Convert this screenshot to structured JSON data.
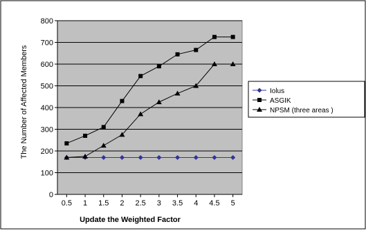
{
  "chart_data": {
    "type": "line",
    "title": "",
    "xlabel": "Update the Weighted Factor",
    "ylabel": "The Number of Affected Members",
    "x": [
      0.5,
      1,
      1.5,
      2,
      2.5,
      3,
      3.5,
      4,
      4.5,
      5
    ],
    "x_tick_labels": [
      "0.5",
      "1",
      "1.5",
      "2",
      "2.5",
      "3",
      "3.5",
      "4",
      "4.5",
      "5"
    ],
    "ylim": [
      0,
      800
    ],
    "y_ticks": [
      0,
      100,
      200,
      300,
      400,
      500,
      600,
      700,
      800
    ],
    "y_tick_labels": [
      "0",
      "100",
      "200",
      "300",
      "400",
      "500",
      "600",
      "700",
      "800"
    ],
    "grid": "horizontal",
    "plot_background": "#c0c0c0",
    "legend_position": "right",
    "series": [
      {
        "name": "Iolus",
        "marker": "diamond",
        "color": "#333399",
        "values": [
          170,
          170,
          170,
          170,
          170,
          170,
          170,
          170,
          170,
          170
        ]
      },
      {
        "name": "ASGIK",
        "marker": "square",
        "color": "#000000",
        "values": [
          235,
          270,
          310,
          430,
          545,
          590,
          645,
          665,
          725,
          725
        ]
      },
      {
        "name": "NPSM (three areas )",
        "marker": "triangle",
        "color": "#000000",
        "values": [
          170,
          175,
          225,
          275,
          370,
          425,
          465,
          500,
          600,
          600
        ]
      }
    ]
  }
}
